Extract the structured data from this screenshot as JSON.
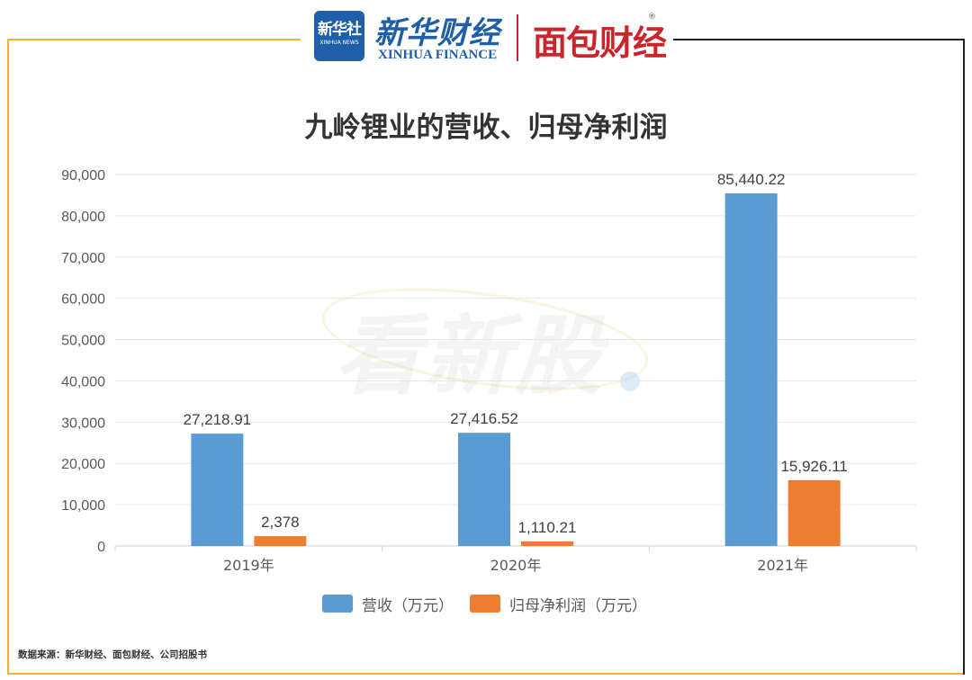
{
  "header": {
    "xinhua_badge_text": "新华社",
    "xinhua_badge_sub": "XINHUA NEWS",
    "xinhua_finance_cn": "新华财经",
    "xinhua_finance_en": "XINHUA FINANCE",
    "mianbao_logo": "面包财经",
    "registered_mark": "®"
  },
  "watermark": "看新股",
  "source": "数据来源：新华财经、面包财经、公司招股书",
  "colors": {
    "revenue": "#5b9bd5",
    "net_profit": "#ed7d31",
    "frame_accent": "#f0b429",
    "title": "#333333"
  },
  "chart_data": {
    "type": "bar",
    "title": "九岭锂业的营收、归母净利润",
    "categories": [
      "2019年",
      "2020年",
      "2021年"
    ],
    "series": [
      {
        "name": "营收（万元）",
        "values": [
          27218.91,
          27416.52,
          85440.22
        ],
        "labels": [
          "27,218.91",
          "27,416.52",
          "85,440.22"
        ]
      },
      {
        "name": "归母净利润（万元）",
        "values": [
          2378,
          1110.21,
          15926.11
        ],
        "labels": [
          "2,378",
          "1,110.21",
          "15,926.11"
        ]
      }
    ],
    "ylim": [
      0,
      90000
    ],
    "yticks": [
      0,
      10000,
      20000,
      30000,
      40000,
      50000,
      60000,
      70000,
      80000,
      90000
    ],
    "ytick_labels": [
      "0",
      "10,000",
      "20,000",
      "30,000",
      "40,000",
      "50,000",
      "60,000",
      "70,000",
      "80,000",
      "90,000"
    ],
    "xlabel": "",
    "ylabel": "",
    "grid": true,
    "legend_position": "bottom"
  }
}
